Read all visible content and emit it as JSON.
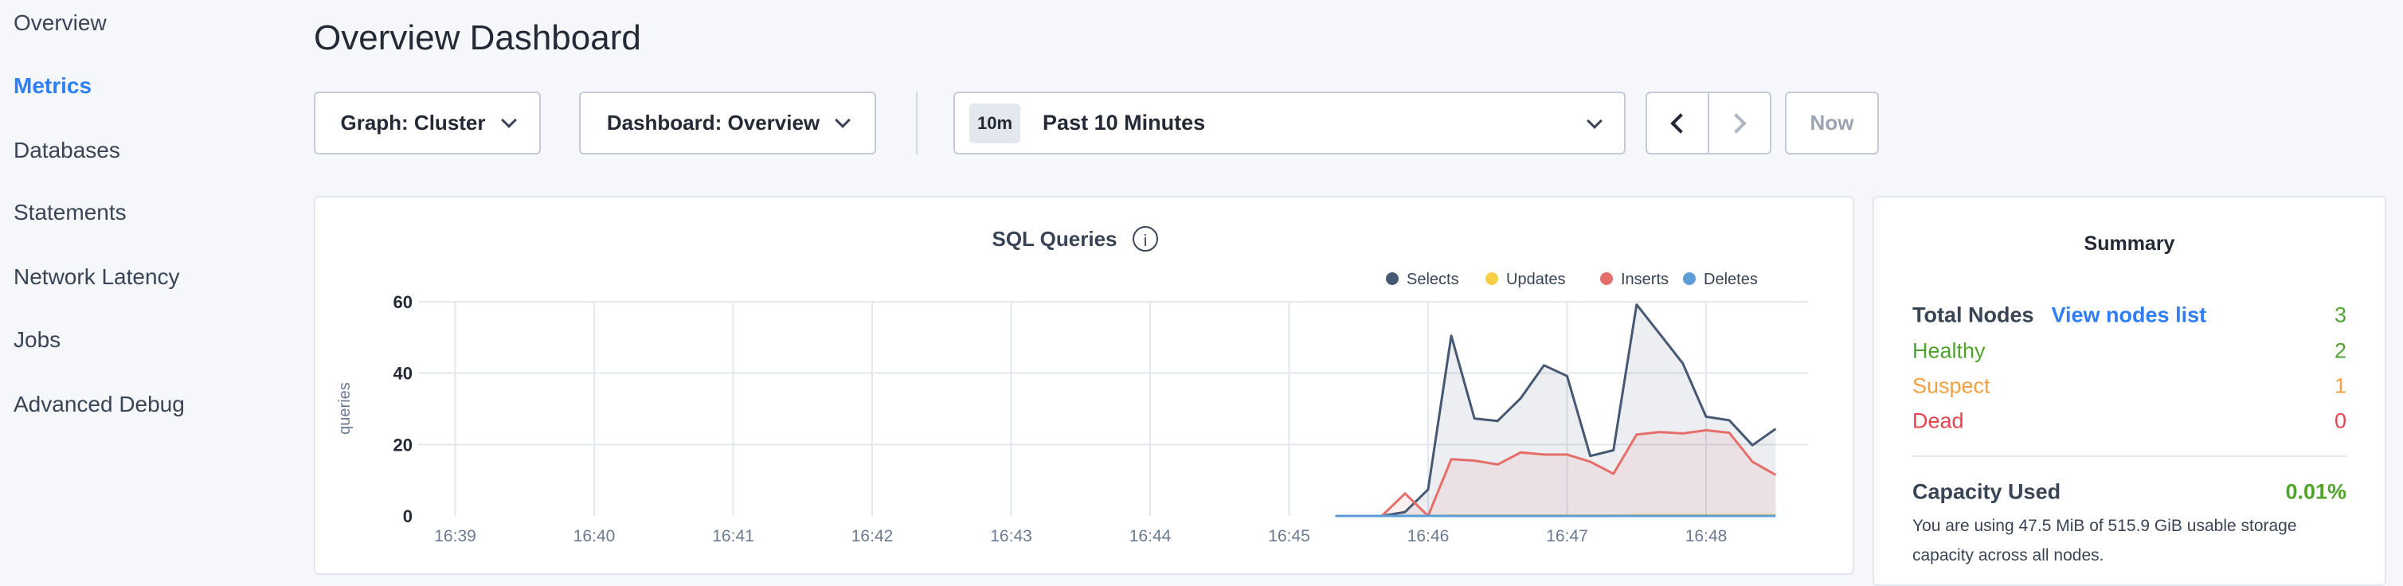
{
  "sidebar": {
    "items": [
      {
        "label": "Overview"
      },
      {
        "label": "Metrics",
        "active": true
      },
      {
        "label": "Databases"
      },
      {
        "label": "Statements"
      },
      {
        "label": "Network Latency"
      },
      {
        "label": "Jobs"
      },
      {
        "label": "Advanced Debug"
      }
    ]
  },
  "header": {
    "title": "Overview Dashboard"
  },
  "toolbar": {
    "graph": "Graph: Cluster",
    "dashboard": "Dashboard: Overview",
    "time_badge": "10m",
    "time_range": "Past 10 Minutes",
    "now": "Now"
  },
  "colors": {
    "accent": "#2d7ef7",
    "healthy": "#50a32c",
    "suspect": "#f2a142",
    "dead": "#e5434f"
  },
  "chart_data": {
    "type": "area",
    "title": "SQL Queries",
    "ylabel": "queries",
    "xlabel": "",
    "ylim": [
      0,
      60
    ],
    "yticks": [
      "60",
      "40",
      "20",
      "0"
    ],
    "xlim": [
      "16:38:44",
      "16:48:44"
    ],
    "xticks": [
      "16:39",
      "16:40",
      "16:41",
      "16:42",
      "16:43",
      "16:44",
      "16:45",
      "16:46",
      "16:47",
      "16:48"
    ],
    "grid": true,
    "legend": "top-right",
    "x": [
      "16:45:20",
      "16:45:30",
      "16:45:40",
      "16:45:50",
      "16:46:00",
      "16:46:10",
      "16:46:20",
      "16:46:30",
      "16:46:40",
      "16:46:50",
      "16:47:00",
      "16:47:10",
      "16:47:20",
      "16:47:30",
      "16:47:40",
      "16:47:50",
      "16:48:00",
      "16:48:10",
      "16:48:20",
      "16:48:30"
    ],
    "series": [
      {
        "name": "Selects",
        "color": "#475872",
        "values": [
          0,
          0,
          0,
          1.1,
          7.4,
          50.5,
          27.3,
          26.6,
          33,
          42.2,
          39.2,
          16.8,
          18.4,
          59.2,
          51,
          42.7,
          27.8,
          26.8,
          19.8,
          24.4
        ]
      },
      {
        "name": "Updates",
        "color": "#f7ce46",
        "values": [
          0,
          0,
          0,
          0,
          0,
          0.1,
          0.1,
          0.1,
          0.1,
          0.1,
          0.1,
          0.1,
          0.1,
          0.2,
          0.2,
          0.2,
          0.2,
          0.2,
          0.2,
          0.2
        ]
      },
      {
        "name": "Inserts",
        "color": "#e56e6a",
        "values": [
          0,
          0,
          0,
          6.3,
          0,
          15.9,
          15.5,
          14.4,
          17.8,
          17.2,
          17.2,
          15.2,
          11.8,
          22.8,
          23.5,
          23.1,
          24,
          23.3,
          15.2,
          11.5
        ]
      },
      {
        "name": "Deletes",
        "color": "#5b9dd6",
        "values": [
          0,
          0,
          0,
          0,
          0,
          0,
          0,
          0,
          0,
          0,
          0,
          0,
          0,
          0,
          0,
          0,
          0,
          0,
          0,
          0
        ]
      }
    ]
  },
  "summary": {
    "title": "Summary",
    "total_label": "Total Nodes",
    "view_link": "View nodes list",
    "total": "3",
    "healthy_label": "Healthy",
    "healthy": "2",
    "suspect_label": "Suspect",
    "suspect": "1",
    "dead_label": "Dead",
    "dead": "0",
    "capacity_label": "Capacity Used",
    "capacity": "0.01%",
    "capacity_text": "You are using 47.5 MiB of 515.9 GiB usable storage capacity across all nodes."
  }
}
